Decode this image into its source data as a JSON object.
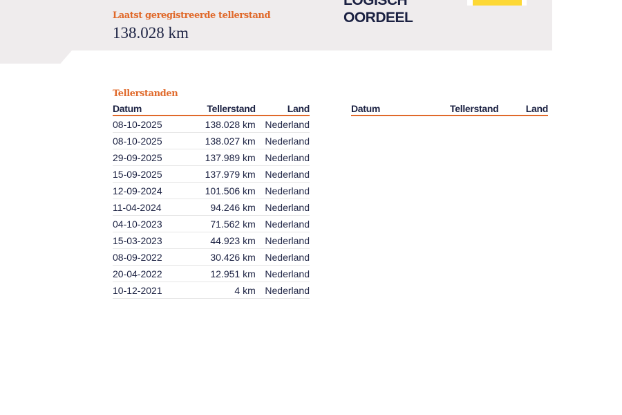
{
  "header": {
    "last_reading_label": "Laatst geregistreerde tellerstand",
    "last_reading_value": "138.028 km",
    "logo_line1": "LOGISCH",
    "logo_line2": "OORDEEL",
    "accent_color": "#e0692a",
    "logo_yellow": "#fdd835"
  },
  "readings": {
    "title": "Tellerstanden",
    "columns": [
      "Datum",
      "Tellerstand",
      "Land"
    ],
    "rows": [
      [
        "08-10-2025",
        "138.028 km",
        "Nederland"
      ],
      [
        "08-10-2025",
        "138.027 km",
        "Nederland"
      ],
      [
        "29-09-2025",
        "137.989 km",
        "Nederland"
      ],
      [
        "15-09-2025",
        "137.979 km",
        "Nederland"
      ],
      [
        "12-09-2024",
        "101.506 km",
        "Nederland"
      ],
      [
        "11-04-2024",
        "94.246 km",
        "Nederland"
      ],
      [
        "04-10-2023",
        "71.562 km",
        "Nederland"
      ],
      [
        "15-03-2023",
        "44.923 km",
        "Nederland"
      ],
      [
        "08-09-2022",
        "30.426 km",
        "Nederland"
      ],
      [
        "20-04-2022",
        "12.951 km",
        "Nederland"
      ],
      [
        "10-12-2021",
        "4 km",
        "Nederland"
      ]
    ],
    "columns_right": [
      "Datum",
      "Tellerstand",
      "Land"
    ]
  }
}
